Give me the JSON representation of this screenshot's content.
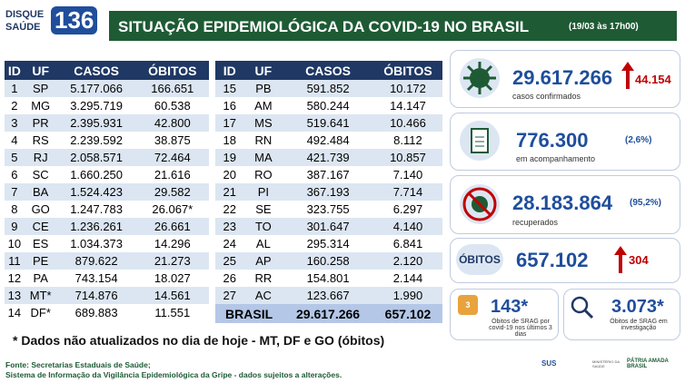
{
  "header": {
    "logo_top": "DISQUE",
    "logo_bottom": "SAÚDE",
    "logo_number": "136",
    "title": "SITUAÇÃO EPIDEMIOLÓGICA DA COVID-19 NO BRASIL",
    "date": "(19/03 às 17h00)"
  },
  "table_left": {
    "columns": [
      "ID",
      "UF",
      "CASOS",
      "ÓBITOS"
    ],
    "rows": [
      [
        "1",
        "SP",
        "5.177.066",
        "166.651"
      ],
      [
        "2",
        "MG",
        "3.295.719",
        "60.538"
      ],
      [
        "3",
        "PR",
        "2.395.931",
        "42.800"
      ],
      [
        "4",
        "RS",
        "2.239.592",
        "38.875"
      ],
      [
        "5",
        "RJ",
        "2.058.571",
        "72.464"
      ],
      [
        "6",
        "SC",
        "1.660.250",
        "21.616"
      ],
      [
        "7",
        "BA",
        "1.524.423",
        "29.582"
      ],
      [
        "8",
        "GO",
        "1.247.783",
        "26.067*"
      ],
      [
        "9",
        "CE",
        "1.236.261",
        "26.661"
      ],
      [
        "10",
        "ES",
        "1.034.373",
        "14.296"
      ],
      [
        "11",
        "PE",
        "879.622",
        "21.273"
      ],
      [
        "12",
        "PA",
        "743.154",
        "18.027"
      ],
      [
        "13",
        "MT*",
        "714.876",
        "14.561"
      ],
      [
        "14",
        "DF*",
        "689.883",
        "11.551"
      ]
    ]
  },
  "table_right": {
    "columns": [
      "ID",
      "UF",
      "CASOS",
      "ÓBITOS"
    ],
    "rows": [
      [
        "15",
        "PB",
        "591.852",
        "10.172"
      ],
      [
        "16",
        "AM",
        "580.244",
        "14.147"
      ],
      [
        "17",
        "MS",
        "519.641",
        "10.466"
      ],
      [
        "18",
        "RN",
        "492.484",
        "8.112"
      ],
      [
        "19",
        "MA",
        "421.739",
        "10.857"
      ],
      [
        "20",
        "RO",
        "387.167",
        "7.140"
      ],
      [
        "21",
        "PI",
        "367.193",
        "7.714"
      ],
      [
        "22",
        "SE",
        "323.755",
        "6.297"
      ],
      [
        "23",
        "TO",
        "301.647",
        "4.140"
      ],
      [
        "24",
        "AL",
        "295.314",
        "6.841"
      ],
      [
        "25",
        "AP",
        "160.258",
        "2.120"
      ],
      [
        "26",
        "RR",
        "154.801",
        "2.144"
      ],
      [
        "27",
        "AC",
        "123.667",
        "1.990"
      ]
    ],
    "total": [
      "BRASIL",
      "29.617.266",
      "657.102"
    ]
  },
  "stats": {
    "confirmed": {
      "value": "29.617.266",
      "increase": "44.154",
      "label": "casos confirmados"
    },
    "monitoring": {
      "value": "776.300",
      "percent": "(2,6%)",
      "label": "em acompanhamento"
    },
    "recovered": {
      "value": "28.183.864",
      "percent": "(95,2%)",
      "label": "recuperados"
    },
    "deaths": {
      "title": "ÓBITOS",
      "value": "657.102",
      "increase": "304"
    },
    "srag_recent": {
      "value": "143*",
      "label": "Óbitos de SRAG por covid-19 nos últimos 3 dias",
      "badge": "3"
    },
    "srag_investigation": {
      "value": "3.073*",
      "label": "Óbitos de SRAG em investigação"
    }
  },
  "note": "* Dados não atualizados no dia de hoje - MT, DF e GO (óbitos)",
  "footer": {
    "source": "Fonte: Secretarias Estaduais de Saúde;",
    "system": "Sistema de Informação da Vigilância Epidemiológica da Gripe - dados sujeitos a alterações.",
    "sus": "SUS",
    "ministry": "MINISTÉRIO DA SAÚDE",
    "government": "PÁTRIA AMADA BRASIL"
  }
}
